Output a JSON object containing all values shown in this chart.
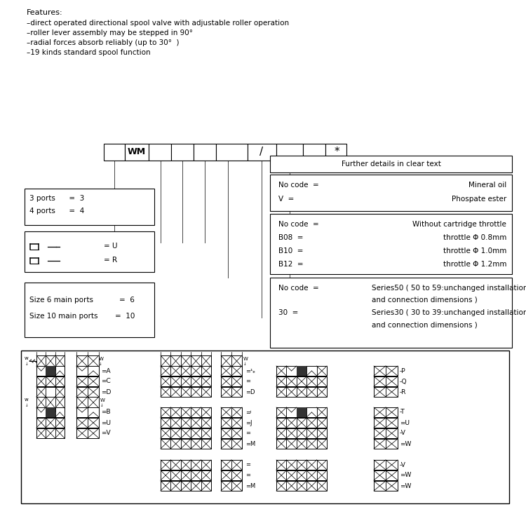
{
  "bg_color": "#ffffff",
  "feature_title": "Features:",
  "feature_lines": [
    "–direct operated directional spool valve with adjustable roller operation",
    "–roller lever assembly may be stepped in 90°",
    "–radial forces absorb reliably (up to 30°  )",
    "–19 kinds standard spool function"
  ],
  "wm_label": "WM",
  "wm_slash": "/",
  "wm_star": "*",
  "further_details_label": "Further details in clear text",
  "fluid_lines": [
    [
      "No code  =",
      "Mineral oil"
    ],
    [
      "V  =",
      "Phospate ester"
    ]
  ],
  "throttle_lines": [
    [
      "No code  =",
      "Without cartridge throttle"
    ],
    [
      "B08  =",
      "throttle Φ 0.8mm"
    ],
    [
      "B10  =",
      "throttle Φ 1.0mm"
    ],
    [
      "B12  =",
      "throttle Φ 1.2mm"
    ]
  ],
  "ports_lines": [
    "3 ports      =  3",
    "4 ports      =  4"
  ],
  "size_lines": [
    [
      "Size 6 main ports",
      "=  6"
    ],
    [
      "Size 10 main ports",
      "=  10"
    ]
  ],
  "series_lines": [
    [
      "No code  =",
      "Series50 ( 50 to 59:unchanged installation"
    ],
    [
      "",
      "and connection dimensions )"
    ],
    [
      "30  =",
      "Series30 ( 30 to 39:unchanged installation"
    ],
    [
      "",
      "and connection dimensions )"
    ]
  ],
  "right_labels": [
    "-P",
    "-Q",
    "-R",
    "-T",
    "=U",
    "-V",
    "=W"
  ],
  "bottom_right_extra_label": "=W"
}
